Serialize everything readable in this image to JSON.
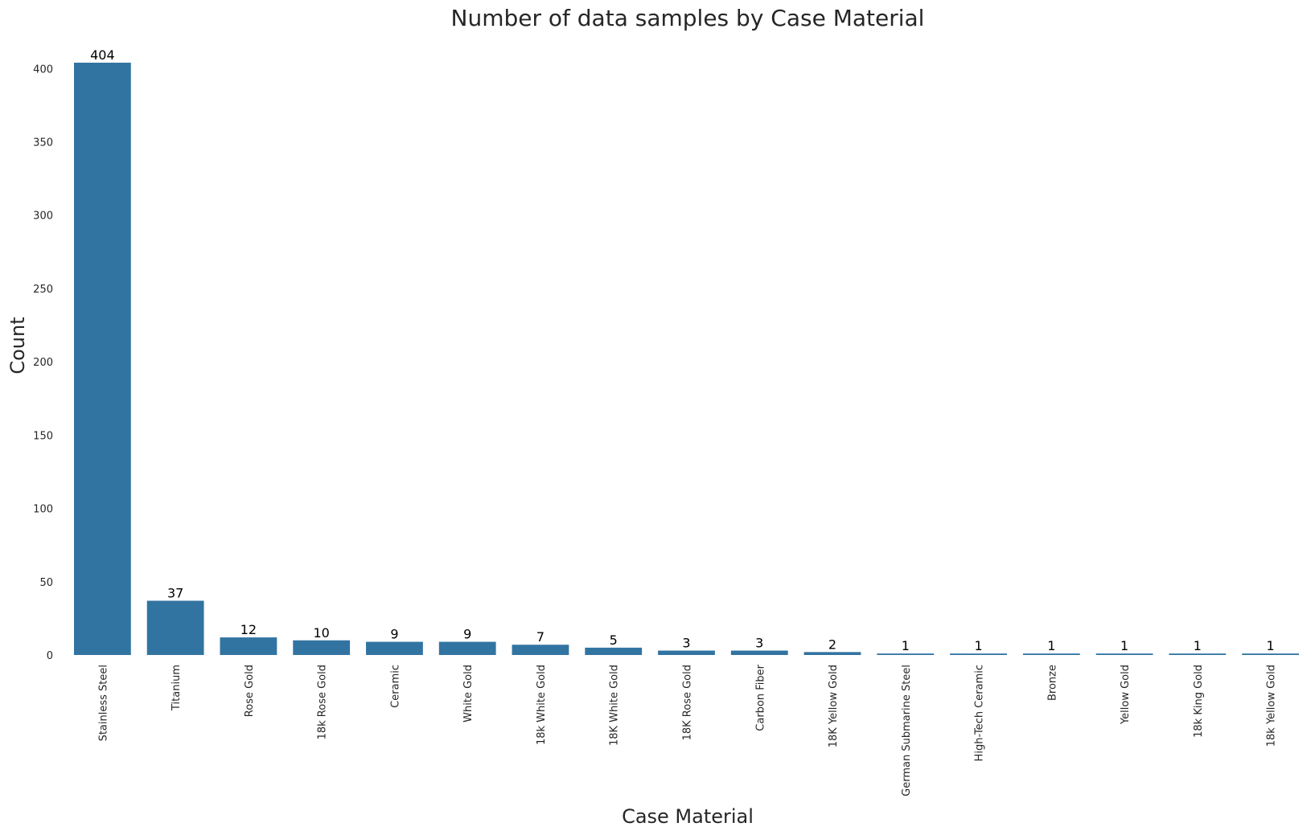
{
  "chart_data": {
    "type": "bar",
    "title": "Number of data samples by Case Material",
    "xlabel": "Case Material",
    "ylabel": "Count",
    "categories": [
      "Stainless Steel",
      "Titanium",
      "Rose Gold",
      "18k Rose Gold",
      "Ceramic",
      "White Gold",
      "18k White Gold",
      "18K White Gold",
      "18K Rose Gold",
      "Carbon Fiber",
      "18K Yellow Gold",
      "German Submarine Steel",
      "High-Tech Ceramic",
      "Bronze",
      "Yellow Gold",
      "18k King Gold",
      "18k Yellow Gold"
    ],
    "values": [
      404,
      37,
      12,
      10,
      9,
      9,
      7,
      5,
      3,
      3,
      2,
      1,
      1,
      1,
      1,
      1,
      1
    ],
    "yticks": [
      0,
      50,
      100,
      150,
      200,
      250,
      300,
      350,
      400
    ],
    "ylim": [
      0,
      404
    ],
    "grid": false,
    "bar_color": "#3274a1",
    "value_labels": true
  }
}
